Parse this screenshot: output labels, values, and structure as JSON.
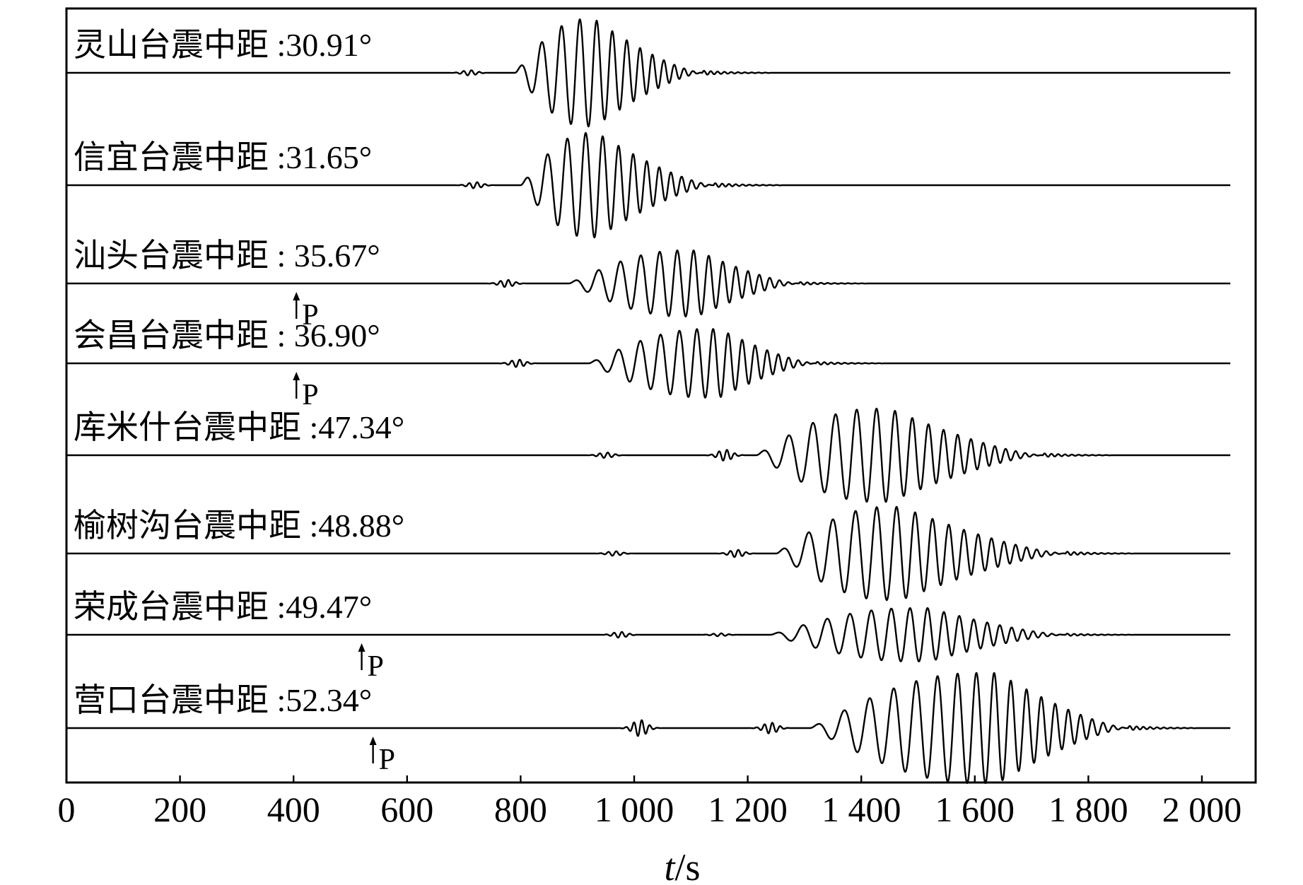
{
  "chart_data": {
    "type": "line",
    "xlabel": {
      "var": "t",
      "unit": "/s"
    },
    "xlim": [
      0,
      2100
    ],
    "x_ticks": [
      0,
      200,
      400,
      600,
      800,
      1000,
      1200,
      1400,
      1600,
      1800,
      2000
    ],
    "x_tick_labels": [
      "0",
      "200",
      "400",
      "600",
      "800",
      "1 000",
      "1 200",
      "1 400",
      "1 600",
      "1 800",
      "2 000"
    ],
    "grid": false,
    "legend": "none",
    "line_color": "#000000",
    "series": [
      {
        "label": "灵山台震中距 :30.91°",
        "trace_start": 0,
        "trace_end": 2050,
        "precursors": [
          {
            "t": 710,
            "amp": 0.05
          }
        ],
        "p_arrow": null,
        "wave_train": {
          "start": 790,
          "peak": 930,
          "end": 1120,
          "period_start": 40,
          "period_end": 14,
          "amplitude": 1.0
        }
      },
      {
        "label": "信宜台震中距 :31.65°",
        "trace_start": 0,
        "trace_end": 2050,
        "precursors": [
          {
            "t": 720,
            "amp": 0.06
          }
        ],
        "p_arrow": null,
        "wave_train": {
          "start": 800,
          "peak": 935,
          "end": 1140,
          "period_start": 40,
          "period_end": 14,
          "amplitude": 1.0
        }
      },
      {
        "label": "汕头台震中距 : 35.67°",
        "trace_start": 0,
        "trace_end": 2050,
        "precursors": [
          {
            "t": 775,
            "amp": 0.1
          }
        ],
        "p_arrow": {
          "t": 405,
          "label": "P"
        },
        "wave_train": {
          "start": 885,
          "peak": 1110,
          "end": 1290,
          "period_start": 44,
          "period_end": 14,
          "amplitude": 0.9
        }
      },
      {
        "label": "会昌台震中距 : 36.90°",
        "trace_start": 0,
        "trace_end": 2050,
        "precursors": [
          {
            "t": 795,
            "amp": 0.1
          }
        ],
        "p_arrow": {
          "t": 405,
          "label": "P"
        },
        "wave_train": {
          "start": 920,
          "peak": 1150,
          "end": 1320,
          "period_start": 44,
          "period_end": 14,
          "amplitude": 0.9
        }
      },
      {
        "label": "库米什台震中距 :47.34°",
        "trace_start": 0,
        "trace_end": 2050,
        "precursors": [
          {
            "t": 950,
            "amp": 0.06
          },
          {
            "t": 1160,
            "amp": 0.12
          }
        ],
        "p_arrow": null,
        "wave_train": {
          "start": 1215,
          "peak": 1450,
          "end": 1720,
          "period_start": 48,
          "period_end": 14,
          "amplitude": 1.0
        }
      },
      {
        "label": "榆树沟台震中距 :48.88°",
        "trace_start": 0,
        "trace_end": 2050,
        "precursors": [
          {
            "t": 965,
            "amp": 0.05
          },
          {
            "t": 1180,
            "amp": 0.08
          }
        ],
        "p_arrow": null,
        "wave_train": {
          "start": 1250,
          "peak": 1470,
          "end": 1760,
          "period_start": 48,
          "period_end": 14,
          "amplitude": 1.0
        }
      },
      {
        "label": "荣成台震中距 :49.47°",
        "trace_start": 0,
        "trace_end": 2050,
        "precursors": [
          {
            "t": 975,
            "amp": 0.1
          },
          {
            "t": 1150,
            "amp": 0.05
          }
        ],
        "p_arrow": {
          "t": 520,
          "label": "P"
        },
        "wave_train": {
          "start": 1240,
          "peak": 1520,
          "end": 1760,
          "period_start": 48,
          "period_end": 14,
          "amplitude": 0.9
        }
      },
      {
        "label": "营口台震中距 :52.34°",
        "trace_start": 0,
        "trace_end": 2050,
        "precursors": [
          {
            "t": 1010,
            "amp": 0.15
          },
          {
            "t": 1240,
            "amp": 0.1
          }
        ],
        "p_arrow": {
          "t": 540,
          "label": "P"
        },
        "wave_train": {
          "start": 1310,
          "peak": 1640,
          "end": 1870,
          "period_start": 50,
          "period_end": 16,
          "amplitude": 1.0
        }
      }
    ]
  }
}
